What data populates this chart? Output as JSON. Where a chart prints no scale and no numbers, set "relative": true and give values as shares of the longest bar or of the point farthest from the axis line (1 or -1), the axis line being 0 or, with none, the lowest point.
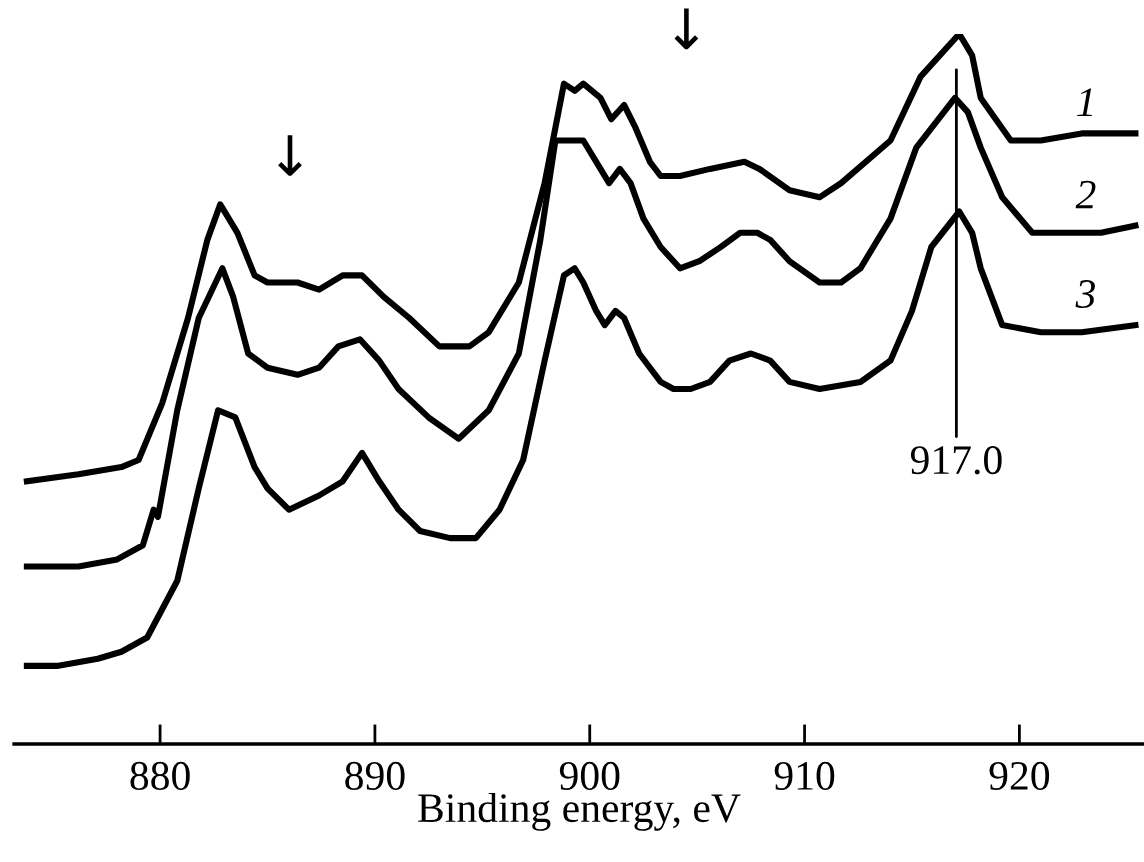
{
  "chart_data": {
    "type": "line",
    "relative": true,
    "xlabel": "Binding energy, eV",
    "xlim": [
      873.2,
      925.8
    ],
    "xticks": [
      880,
      890,
      900,
      910,
      920
    ],
    "grid": false,
    "legend": false,
    "marker": "none",
    "line_style": "solid",
    "tick_labels": "x",
    "series": [
      {
        "name": "1",
        "color": "#000000",
        "x": [
          873.8,
          876.2,
          878.2,
          879.0,
          880.1,
          881.3,
          882.2,
          882.8,
          883.6,
          884.4,
          885.0,
          886.4,
          887.4,
          888.5,
          889.4,
          890.4,
          891.6,
          893.0,
          894.4,
          895.3,
          896.7,
          897.9,
          898.8,
          899.3,
          899.7,
          900.5,
          901.0,
          901.6,
          902.1,
          902.8,
          903.3,
          904.2,
          905.6,
          907.2,
          907.9,
          909.3,
          910.7,
          911.7,
          914.0,
          915.4,
          917.2,
          917.8,
          918.2,
          919.6,
          921.0,
          922.9,
          925.4
        ],
        "values": [
          0.37,
          0.38,
          0.39,
          0.4,
          0.48,
          0.6,
          0.71,
          0.76,
          0.72,
          0.66,
          0.65,
          0.65,
          0.64,
          0.66,
          0.66,
          0.63,
          0.6,
          0.56,
          0.56,
          0.58,
          0.65,
          0.79,
          0.93,
          0.92,
          0.93,
          0.91,
          0.88,
          0.9,
          0.87,
          0.82,
          0.8,
          0.8,
          0.81,
          0.82,
          0.81,
          0.78,
          0.77,
          0.79,
          0.85,
          0.94,
          1.0,
          0.97,
          0.91,
          0.85,
          0.85,
          0.86,
          0.86
        ]
      },
      {
        "name": "2",
        "color": "#000000",
        "x": [
          873.8,
          876.2,
          878.0,
          879.2,
          879.7,
          879.9,
          880.8,
          881.8,
          882.9,
          883.4,
          884.1,
          885.0,
          886.4,
          887.4,
          888.3,
          889.3,
          890.2,
          891.1,
          892.5,
          893.9,
          895.3,
          896.7,
          897.7,
          898.4,
          899.1,
          899.7,
          900.5,
          900.9,
          901.4,
          901.9,
          902.5,
          903.3,
          904.2,
          905.1,
          906.1,
          907.0,
          907.8,
          908.4,
          909.3,
          910.7,
          911.7,
          912.6,
          914.0,
          915.2,
          917.0,
          917.6,
          918.2,
          919.2,
          920.6,
          922.0,
          923.8,
          925.4
        ],
        "values": [
          0.25,
          0.25,
          0.26,
          0.28,
          0.33,
          0.32,
          0.47,
          0.6,
          0.67,
          0.63,
          0.55,
          0.53,
          0.52,
          0.53,
          0.56,
          0.57,
          0.54,
          0.5,
          0.46,
          0.43,
          0.47,
          0.55,
          0.71,
          0.85,
          0.85,
          0.85,
          0.81,
          0.79,
          0.81,
          0.79,
          0.74,
          0.7,
          0.67,
          0.68,
          0.7,
          0.72,
          0.72,
          0.71,
          0.68,
          0.65,
          0.65,
          0.67,
          0.74,
          0.84,
          0.91,
          0.89,
          0.84,
          0.77,
          0.72,
          0.72,
          0.72,
          0.73
        ]
      },
      {
        "name": "3",
        "color": "#000000",
        "x": [
          873.8,
          875.2,
          877.1,
          878.2,
          879.4,
          880.8,
          881.8,
          882.7,
          883.5,
          884.4,
          885.0,
          886.0,
          887.4,
          888.5,
          889.4,
          890.2,
          891.1,
          892.1,
          893.5,
          894.7,
          895.8,
          896.9,
          897.9,
          898.8,
          899.3,
          899.7,
          900.3,
          900.7,
          901.2,
          901.6,
          902.3,
          903.3,
          903.9,
          904.7,
          905.6,
          906.5,
          907.5,
          908.4,
          909.3,
          910.7,
          912.6,
          914.0,
          915.0,
          915.9,
          917.2,
          917.8,
          918.2,
          919.2,
          921.0,
          922.9,
          925.4
        ],
        "values": [
          0.11,
          0.11,
          0.12,
          0.13,
          0.15,
          0.23,
          0.36,
          0.47,
          0.46,
          0.39,
          0.36,
          0.33,
          0.35,
          0.37,
          0.41,
          0.37,
          0.33,
          0.3,
          0.29,
          0.29,
          0.33,
          0.4,
          0.54,
          0.66,
          0.67,
          0.65,
          0.61,
          0.59,
          0.61,
          0.6,
          0.55,
          0.51,
          0.5,
          0.5,
          0.51,
          0.54,
          0.55,
          0.54,
          0.51,
          0.5,
          0.51,
          0.54,
          0.61,
          0.7,
          0.75,
          0.72,
          0.67,
          0.59,
          0.58,
          0.58,
          0.59
        ]
      }
    ],
    "annotations": [
      "↓",
      "↓",
      "917.0"
    ]
  }
}
